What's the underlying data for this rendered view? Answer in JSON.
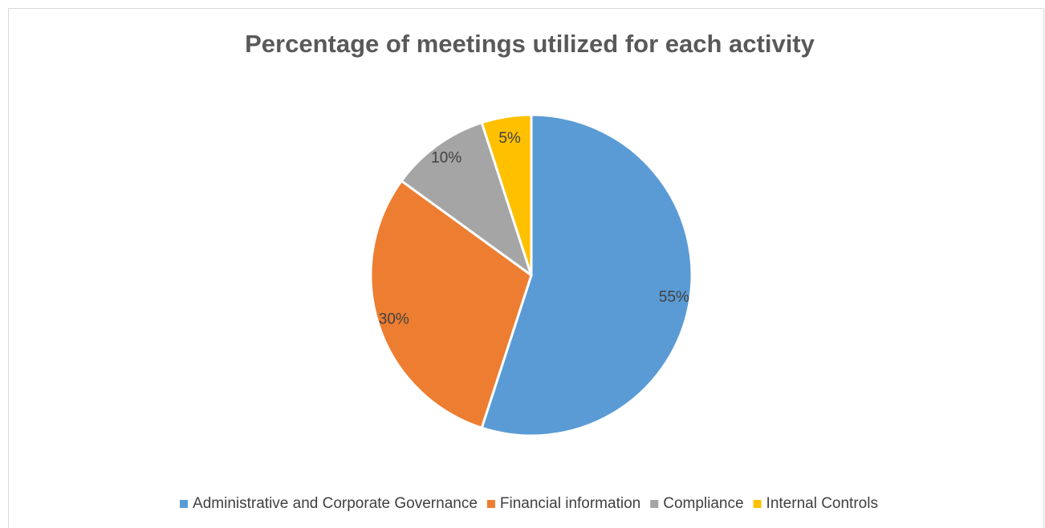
{
  "chart_data": {
    "type": "pie",
    "title": "Percentage of meetings utilized for each activity",
    "categories": [
      "Administrative and Corporate Governance",
      "Financial information",
      "Compliance",
      "Internal Controls"
    ],
    "values": [
      55,
      30,
      10,
      5
    ],
    "value_labels": [
      "55%",
      "30%",
      "10%",
      "5%"
    ],
    "colors": [
      "#5b9bd5",
      "#ed7d31",
      "#a5a5a5",
      "#ffc000"
    ],
    "legend": "bottom"
  }
}
